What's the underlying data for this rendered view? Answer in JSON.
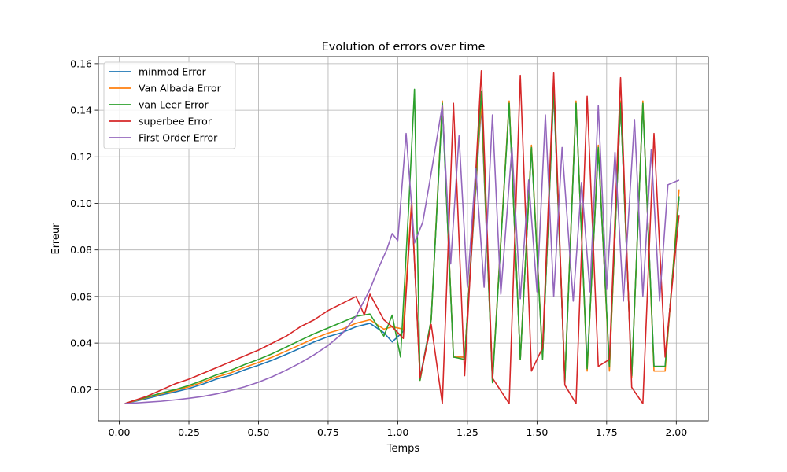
{
  "chart_data": {
    "type": "line",
    "title": "Evolution of errors over time",
    "xlabel": "Temps",
    "ylabel": "Erreur",
    "xlim": [
      -0.075,
      2.115
    ],
    "ylim": [
      0.0066,
      0.163
    ],
    "xticks": [
      0.0,
      0.25,
      0.5,
      0.75,
      1.0,
      1.25,
      1.5,
      1.75,
      2.0
    ],
    "xtick_labels": [
      "0.00",
      "0.25",
      "0.50",
      "0.75",
      "1.00",
      "1.25",
      "1.50",
      "1.75",
      "2.00"
    ],
    "yticks": [
      0.02,
      0.04,
      0.06,
      0.08,
      0.1,
      0.12,
      0.14,
      0.16
    ],
    "ytick_labels": [
      "0.02",
      "0.04",
      "0.06",
      "0.08",
      "0.10",
      "0.12",
      "0.14",
      "0.16"
    ],
    "grid": true,
    "legend_position": "upper-left",
    "series": [
      {
        "name": "minmod Error",
        "color": "#1f77b4",
        "x": [
          0.02,
          0.05,
          0.1,
          0.15,
          0.2,
          0.25,
          0.3,
          0.35,
          0.4,
          0.45,
          0.5,
          0.55,
          0.6,
          0.65,
          0.7,
          0.75,
          0.8,
          0.85,
          0.9,
          0.95,
          0.98,
          1.02,
          1.05,
          1.08,
          1.12,
          1.16,
          1.2,
          1.24,
          1.3,
          1.34,
          1.4,
          1.44,
          1.48,
          1.52,
          1.56,
          1.6,
          1.64,
          1.68,
          1.72,
          1.76,
          1.8,
          1.84,
          1.88,
          1.92,
          1.96,
          2.01
        ],
        "y": [
          0.014,
          0.0148,
          0.0162,
          0.0177,
          0.019,
          0.0205,
          0.0224,
          0.0246,
          0.0262,
          0.0285,
          0.0305,
          0.0327,
          0.0352,
          0.0378,
          0.0405,
          0.0428,
          0.0445,
          0.047,
          0.0485,
          0.0445,
          0.0405,
          0.045,
          0.1,
          0.025,
          0.05,
          0.142,
          0.034,
          0.034,
          0.142,
          0.024,
          0.143,
          0.033,
          0.124,
          0.034,
          0.148,
          0.024,
          0.143,
          0.03,
          0.123,
          0.03,
          0.143,
          0.025,
          0.143,
          0.03,
          0.03,
          0.103
        ]
      },
      {
        "name": "Van Albada Error",
        "color": "#ff7f0e",
        "x": [
          0.02,
          0.05,
          0.1,
          0.15,
          0.2,
          0.25,
          0.3,
          0.35,
          0.4,
          0.45,
          0.5,
          0.55,
          0.6,
          0.65,
          0.7,
          0.75,
          0.8,
          0.85,
          0.9,
          0.95,
          0.98,
          1.02,
          1.05,
          1.08,
          1.12,
          1.16,
          1.2,
          1.24,
          1.3,
          1.34,
          1.4,
          1.44,
          1.48,
          1.52,
          1.56,
          1.6,
          1.64,
          1.68,
          1.72,
          1.76,
          1.8,
          1.84,
          1.88,
          1.92,
          1.96,
          2.01
        ],
        "y": [
          0.014,
          0.015,
          0.0166,
          0.0182,
          0.0196,
          0.0212,
          0.0232,
          0.0255,
          0.0272,
          0.0296,
          0.0317,
          0.034,
          0.0366,
          0.0393,
          0.042,
          0.0443,
          0.046,
          0.0485,
          0.05,
          0.046,
          0.047,
          0.046,
          0.102,
          0.024,
          0.05,
          0.144,
          0.034,
          0.034,
          0.144,
          0.024,
          0.144,
          0.033,
          0.125,
          0.034,
          0.15,
          0.024,
          0.144,
          0.028,
          0.125,
          0.028,
          0.144,
          0.025,
          0.144,
          0.028,
          0.028,
          0.106
        ]
      },
      {
        "name": "van Leer Error",
        "color": "#2ca02c",
        "x": [
          0.02,
          0.05,
          0.1,
          0.15,
          0.2,
          0.25,
          0.3,
          0.35,
          0.4,
          0.45,
          0.5,
          0.55,
          0.6,
          0.65,
          0.7,
          0.75,
          0.8,
          0.85,
          0.9,
          0.95,
          0.98,
          1.01,
          1.04,
          1.06,
          1.08,
          1.12,
          1.16,
          1.2,
          1.24,
          1.3,
          1.34,
          1.4,
          1.44,
          1.48,
          1.52,
          1.56,
          1.6,
          1.64,
          1.68,
          1.72,
          1.76,
          1.8,
          1.84,
          1.88,
          1.92,
          1.96,
          2.01
        ],
        "y": [
          0.014,
          0.0152,
          0.0168,
          0.0185,
          0.02,
          0.0218,
          0.024,
          0.0264,
          0.0283,
          0.0308,
          0.033,
          0.0355,
          0.0383,
          0.0412,
          0.044,
          0.0465,
          0.049,
          0.0515,
          0.0525,
          0.043,
          0.052,
          0.034,
          0.1,
          0.149,
          0.024,
          0.05,
          0.143,
          0.034,
          0.033,
          0.148,
          0.023,
          0.143,
          0.033,
          0.124,
          0.033,
          0.15,
          0.023,
          0.143,
          0.029,
          0.124,
          0.03,
          0.143,
          0.026,
          0.143,
          0.03,
          0.03,
          0.103
        ]
      },
      {
        "name": "superbee Error",
        "color": "#d62728",
        "x": [
          0.02,
          0.05,
          0.1,
          0.15,
          0.2,
          0.25,
          0.3,
          0.35,
          0.4,
          0.45,
          0.5,
          0.55,
          0.6,
          0.65,
          0.7,
          0.75,
          0.8,
          0.85,
          0.88,
          0.9,
          0.95,
          0.98,
          1.02,
          1.05,
          1.08,
          1.12,
          1.16,
          1.2,
          1.24,
          1.3,
          1.34,
          1.4,
          1.44,
          1.48,
          1.52,
          1.56,
          1.6,
          1.64,
          1.68,
          1.72,
          1.76,
          1.8,
          1.84,
          1.88,
          1.92,
          1.96,
          2.01
        ],
        "y": [
          0.014,
          0.0152,
          0.0172,
          0.0198,
          0.0225,
          0.0245,
          0.027,
          0.0295,
          0.032,
          0.0345,
          0.037,
          0.04,
          0.043,
          0.047,
          0.05,
          0.054,
          0.057,
          0.06,
          0.052,
          0.061,
          0.05,
          0.047,
          0.042,
          0.1,
          0.025,
          0.048,
          0.014,
          0.143,
          0.026,
          0.157,
          0.025,
          0.014,
          0.155,
          0.028,
          0.038,
          0.156,
          0.022,
          0.014,
          0.146,
          0.03,
          0.033,
          0.154,
          0.021,
          0.014,
          0.13,
          0.034,
          0.095
        ]
      },
      {
        "name": "First Order Error",
        "color": "#9467bd",
        "x": [
          0.02,
          0.05,
          0.1,
          0.15,
          0.2,
          0.25,
          0.3,
          0.35,
          0.4,
          0.45,
          0.5,
          0.55,
          0.6,
          0.65,
          0.7,
          0.75,
          0.8,
          0.85,
          0.9,
          0.93,
          0.96,
          0.98,
          1.0,
          1.03,
          1.06,
          1.09,
          1.12,
          1.16,
          1.19,
          1.22,
          1.25,
          1.28,
          1.31,
          1.34,
          1.37,
          1.41,
          1.44,
          1.47,
          1.5,
          1.53,
          1.56,
          1.59,
          1.63,
          1.66,
          1.69,
          1.72,
          1.75,
          1.78,
          1.81,
          1.85,
          1.88,
          1.91,
          1.94,
          1.97,
          2.01
        ],
        "y": [
          0.014,
          0.0142,
          0.0146,
          0.015,
          0.0156,
          0.0163,
          0.0171,
          0.0182,
          0.0196,
          0.0212,
          0.0232,
          0.0256,
          0.0284,
          0.0315,
          0.035,
          0.039,
          0.044,
          0.0515,
          0.063,
          0.072,
          0.08,
          0.087,
          0.084,
          0.13,
          0.083,
          0.092,
          0.113,
          0.142,
          0.074,
          0.129,
          0.064,
          0.115,
          0.064,
          0.138,
          0.061,
          0.124,
          0.059,
          0.11,
          0.062,
          0.138,
          0.06,
          0.124,
          0.058,
          0.109,
          0.062,
          0.142,
          0.063,
          0.122,
          0.058,
          0.136,
          0.06,
          0.123,
          0.058,
          0.108,
          0.11
        ]
      }
    ]
  }
}
